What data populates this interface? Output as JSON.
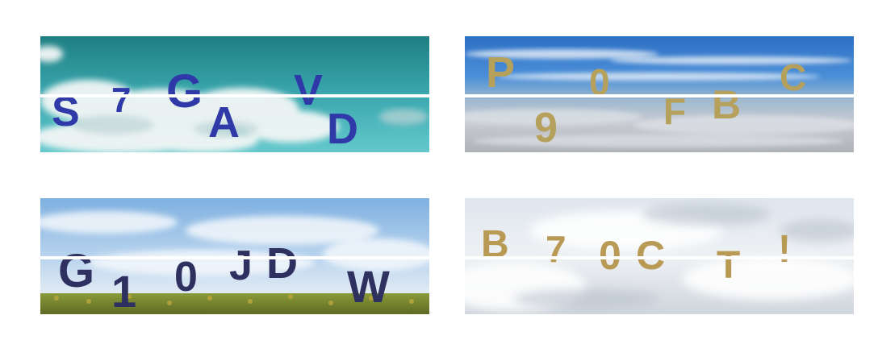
{
  "panels": [
    {
      "id": "p1",
      "text_color": "#2f3aa8",
      "characters": [
        "S",
        "7",
        "G",
        "A",
        "V",
        "D"
      ]
    },
    {
      "id": "p2",
      "text_color": "#b5a05c",
      "characters": [
        "P",
        "9",
        "0",
        "F",
        "B",
        "C"
      ]
    },
    {
      "id": "p3",
      "text_color": "#2e3160",
      "characters": [
        "G",
        "1",
        "0",
        "J",
        "D",
        "W"
      ]
    },
    {
      "id": "p4",
      "text_color": "#b89a55",
      "characters": [
        "B",
        "7",
        "0",
        "C",
        "T",
        "!"
      ]
    }
  ]
}
